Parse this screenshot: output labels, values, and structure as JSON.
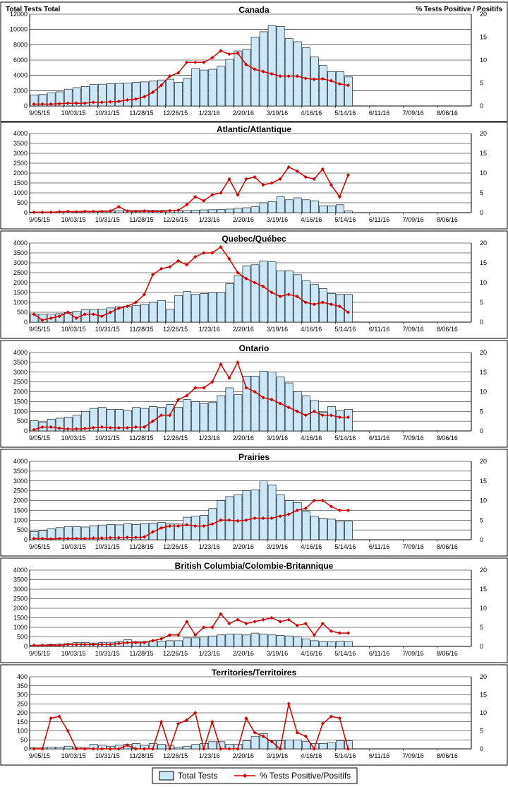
{
  "header": {
    "left_label": "Total Tests Total",
    "right_label": "% Tests Positive / Positifs"
  },
  "legend": {
    "bar_label": "Total Tests",
    "line_label": "% Tests Positive/Positifs"
  },
  "colors": {
    "bar_fill": "#cce8f6",
    "bar_stroke": "#000000",
    "line": "#d40000",
    "grid": "#000000"
  },
  "chart_data": [
    {
      "type": "bar+line",
      "title": "Canada",
      "categories_ticks": [
        "9/05/15",
        "10/03/15",
        "10/31/15",
        "11/28/15",
        "12/26/15",
        "1/23/16",
        "2/20/16",
        "3/19/16",
        "4/16/16",
        "5/14/16",
        "6/11/16",
        "7/09/16",
        "8/06/16"
      ],
      "weeks_total": 52,
      "y_left": [
        0,
        2000,
        4000,
        6000,
        8000,
        10000,
        12000
      ],
      "y_right": [
        0,
        5,
        10,
        15,
        20
      ],
      "tests": [
        1450,
        1500,
        1700,
        1850,
        2200,
        2400,
        2550,
        2800,
        2850,
        2900,
        2950,
        3000,
        3100,
        3150,
        3250,
        3400,
        3500,
        3100,
        3600,
        4900,
        4700,
        4800,
        5200,
        6100,
        7200,
        7400,
        9000,
        9700,
        10500,
        10400,
        8800,
        8400,
        7600,
        6400,
        5300,
        4500,
        4500,
        3800
      ],
      "pct_positive": [
        0.4,
        0.4,
        0.4,
        0.5,
        0.6,
        0.6,
        0.6,
        0.8,
        0.8,
        0.9,
        1.0,
        1.3,
        1.5,
        2.0,
        3.0,
        4.5,
        6.5,
        7.2,
        9.5,
        9.5,
        9.5,
        10.5,
        12.0,
        11.3,
        11.5,
        9.0,
        8.0,
        7.5,
        7.0,
        6.5,
        6.5,
        6.5,
        6.0,
        5.8,
        5.9,
        5.5,
        4.8,
        4.5
      ]
    },
    {
      "type": "bar+line",
      "title": "Atlantic/Atlantique",
      "categories_ticks": [
        "9/05/15",
        "10/03/15",
        "10/31/15",
        "11/28/15",
        "12/26/15",
        "1/23/16",
        "2/20/16",
        "3/19/16",
        "4/16/16",
        "5/14/16",
        "6/11/16",
        "7/09/16",
        "8/06/16"
      ],
      "weeks_total": 52,
      "y_left": [
        0,
        500,
        1000,
        1500,
        2000,
        2500,
        3000,
        3500,
        4000
      ],
      "y_right": [
        0,
        5,
        10,
        15,
        20
      ],
      "tests": [
        30,
        35,
        40,
        45,
        60,
        70,
        80,
        80,
        90,
        90,
        100,
        110,
        110,
        115,
        120,
        110,
        110,
        100,
        110,
        130,
        140,
        150,
        160,
        180,
        220,
        250,
        300,
        500,
        550,
        800,
        650,
        750,
        650,
        600,
        350,
        350,
        400,
        80
      ],
      "pct_positive": [
        0.1,
        0.1,
        0.1,
        0.2,
        0.3,
        0.2,
        0.3,
        0.3,
        0.3,
        0.4,
        1.5,
        0.4,
        0.3,
        0.4,
        0.3,
        0.3,
        0.5,
        0.6,
        2.0,
        4.0,
        3.0,
        4.5,
        5.0,
        8.5,
        4.5,
        8.5,
        9.0,
        7.0,
        7.5,
        8.5,
        11.5,
        10.5,
        9.0,
        8.5,
        11.0,
        7.0,
        4.0,
        9.5
      ]
    },
    {
      "type": "bar+line",
      "title": "Quebec/Québec",
      "categories_ticks": [
        "9/05/15",
        "10/03/15",
        "10/31/15",
        "11/28/15",
        "12/26/15",
        "1/23/16",
        "2/20/16",
        "3/19/16",
        "4/16/16",
        "5/14/16",
        "6/11/16",
        "7/09/16",
        "8/06/16"
      ],
      "weeks_total": 52,
      "y_left": [
        0,
        500,
        1000,
        1500,
        2000,
        2500,
        3000,
        3500,
        4000
      ],
      "y_right": [
        0,
        5,
        10,
        15,
        20
      ],
      "tests": [
        420,
        400,
        400,
        430,
        480,
        550,
        620,
        650,
        650,
        720,
        780,
        800,
        850,
        900,
        1000,
        1100,
        650,
        1350,
        1550,
        1400,
        1450,
        1500,
        1500,
        1950,
        2350,
        2850,
        2900,
        3100,
        3050,
        2600,
        2600,
        2400,
        2100,
        1900,
        1700,
        1450,
        1400,
        1400
      ],
      "pct_positive": [
        2.0,
        0.5,
        1.0,
        1.5,
        2.5,
        1.0,
        2.0,
        2.0,
        1.5,
        2.5,
        3.5,
        4.0,
        5.0,
        7.0,
        12.0,
        13.5,
        14.0,
        15.5,
        14.5,
        16.5,
        17.5,
        17.5,
        19.0,
        16.0,
        12.5,
        11.0,
        10.0,
        9.0,
        7.5,
        6.5,
        7.0,
        6.5,
        5.0,
        4.5,
        5.0,
        4.5,
        4.0,
        2.5
      ]
    },
    {
      "type": "bar+line",
      "title": "Ontario",
      "categories_ticks": [
        "9/05/15",
        "10/03/15",
        "10/31/15",
        "11/28/15",
        "12/26/15",
        "1/23/16",
        "2/20/16",
        "3/19/16",
        "4/16/16",
        "5/14/16",
        "6/11/16",
        "7/09/16",
        "8/06/16"
      ],
      "weeks_total": 52,
      "y_left": [
        0,
        500,
        1000,
        1500,
        2000,
        2500,
        3000,
        3500,
        4000
      ],
      "y_right": [
        0,
        5,
        10,
        15,
        20
      ],
      "tests": [
        520,
        450,
        600,
        650,
        700,
        800,
        1000,
        1150,
        1200,
        1100,
        1100,
        1050,
        1200,
        1150,
        1250,
        1200,
        1350,
        1200,
        1600,
        1500,
        1400,
        1450,
        1800,
        2200,
        1850,
        2800,
        2800,
        3050,
        3000,
        2750,
        2450,
        2000,
        1800,
        1550,
        950,
        1250,
        1050,
        1100
      ],
      "pct_positive": [
        0.3,
        1.0,
        1.0,
        0.7,
        0.5,
        0.5,
        0.6,
        0.8,
        1.0,
        0.8,
        0.8,
        0.8,
        1.0,
        1.0,
        2.5,
        4.0,
        4.0,
        8.0,
        9.0,
        11.0,
        11.0,
        12.5,
        17.0,
        13.5,
        17.5,
        11.0,
        10.0,
        8.5,
        8.0,
        7.0,
        6.0,
        5.0,
        4.0,
        5.0,
        4.0,
        4.0,
        3.5,
        3.5
      ]
    },
    {
      "type": "bar+line",
      "title": "Prairies",
      "categories_ticks": [
        "9/05/15",
        "10/03/15",
        "10/31/15",
        "11/28/15",
        "12/26/15",
        "1/23/16",
        "2/20/16",
        "3/19/16",
        "4/16/16",
        "5/14/16",
        "6/11/16",
        "7/09/16",
        "8/06/16"
      ],
      "weeks_total": 52,
      "y_left": [
        0,
        500,
        1000,
        1500,
        2000,
        2500,
        3000,
        3500,
        4000
      ],
      "y_right": [
        0,
        5,
        10,
        15,
        20
      ],
      "tests": [
        420,
        480,
        550,
        620,
        680,
        660,
        650,
        720,
        750,
        780,
        760,
        820,
        780,
        830,
        850,
        880,
        820,
        800,
        1150,
        1200,
        1250,
        1600,
        2000,
        2200,
        2300,
        2500,
        2550,
        3000,
        2800,
        2300,
        2000,
        1900,
        1450,
        1200,
        1100,
        1050,
        950,
        950
      ],
      "pct_positive": [
        0.3,
        0.3,
        0.2,
        0.3,
        0.3,
        0.3,
        0.3,
        0.4,
        0.4,
        0.5,
        0.5,
        0.6,
        0.6,
        0.7,
        2.0,
        3.0,
        3.5,
        3.5,
        3.8,
        3.5,
        3.5,
        4.0,
        5.0,
        5.0,
        4.8,
        5.0,
        5.5,
        5.5,
        5.5,
        6.0,
        6.5,
        7.5,
        8.0,
        10.0,
        10.0,
        8.5,
        7.5,
        7.5
      ]
    },
    {
      "type": "bar+line",
      "title": "British Columbia/Colombie-Britannique",
      "categories_ticks": [
        "9/05/15",
        "10/03/15",
        "10/31/15",
        "11/28/15",
        "12/26/15",
        "1/23/16",
        "2/20/16",
        "3/19/16",
        "4/16/16",
        "5/14/16",
        "6/11/16",
        "7/09/16",
        "8/06/16"
      ],
      "weeks_total": 52,
      "y_left": [
        0,
        500,
        1000,
        1500,
        2000,
        2500,
        3000,
        3500,
        4000
      ],
      "y_right": [
        0,
        5,
        10,
        15,
        20
      ],
      "tests": [
        60,
        80,
        100,
        120,
        150,
        200,
        200,
        180,
        200,
        220,
        250,
        350,
        250,
        250,
        300,
        280,
        300,
        300,
        450,
        450,
        500,
        550,
        600,
        650,
        650,
        600,
        700,
        650,
        600,
        580,
        550,
        500,
        400,
        300,
        250,
        250,
        280,
        250
      ],
      "pct_positive": [
        0.3,
        0.3,
        0.3,
        0.3,
        0.5,
        0.5,
        0.5,
        0.5,
        0.5,
        0.5,
        0.8,
        1.0,
        1.0,
        1.0,
        1.5,
        2.0,
        3.0,
        3.0,
        6.5,
        3.0,
        5.0,
        5.0,
        8.5,
        6.0,
        7.0,
        6.0,
        6.5,
        7.0,
        7.5,
        6.5,
        7.0,
        5.5,
        6.0,
        3.0,
        6.0,
        4.0,
        3.5,
        3.5
      ]
    },
    {
      "type": "bar+line",
      "title": "Territories/Territoires",
      "categories_ticks": [
        "9/05/15",
        "10/03/15",
        "10/31/15",
        "11/28/15",
        "12/26/15",
        "1/23/16",
        "2/20/16",
        "3/19/16",
        "4/16/16",
        "5/14/16",
        "6/11/16",
        "7/09/16",
        "8/06/16"
      ],
      "weeks_total": 52,
      "y_left": [
        0,
        50,
        100,
        150,
        200,
        250,
        300,
        350,
        400
      ],
      "y_right": [
        0,
        5,
        10,
        15,
        20
      ],
      "tests": [
        5,
        5,
        10,
        10,
        15,
        10,
        5,
        25,
        20,
        15,
        20,
        25,
        30,
        20,
        30,
        25,
        20,
        10,
        15,
        25,
        30,
        40,
        40,
        25,
        25,
        45,
        70,
        85,
        45,
        45,
        50,
        50,
        40,
        30,
        30,
        35,
        45,
        45
      ],
      "pct_positive": [
        0,
        0,
        8.5,
        9.0,
        5.0,
        0,
        0,
        0,
        0,
        0,
        0,
        1.0,
        0,
        0,
        0,
        7.5,
        0,
        7.0,
        8.0,
        10.0,
        0,
        7.5,
        0,
        0,
        0,
        8.5,
        4.5,
        3.5,
        2.0,
        0,
        12.5,
        4.5,
        3.5,
        0,
        7.0,
        9.0,
        8.5,
        0
      ]
    }
  ]
}
